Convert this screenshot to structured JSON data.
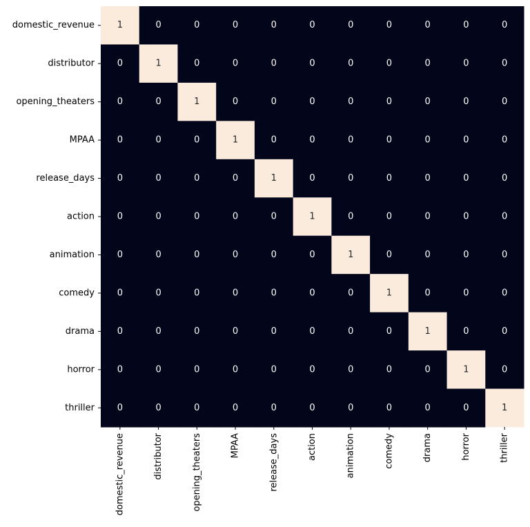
{
  "chart_data": {
    "type": "heatmap",
    "title": "",
    "xlabel": "",
    "ylabel": "",
    "x_categories": [
      "domestic_revenue",
      "distributor",
      "opening_theaters",
      "MPAA",
      "release_days",
      "action",
      "animation",
      "comedy",
      "drama",
      "horror",
      "thriller"
    ],
    "y_categories": [
      "domestic_revenue",
      "distributor",
      "opening_theaters",
      "MPAA",
      "release_days",
      "action",
      "animation",
      "comedy",
      "drama",
      "horror",
      "thriller"
    ],
    "values": [
      [
        1,
        0,
        0,
        0,
        0,
        0,
        0,
        0,
        0,
        0,
        0
      ],
      [
        0,
        1,
        0,
        0,
        0,
        0,
        0,
        0,
        0,
        0,
        0
      ],
      [
        0,
        0,
        1,
        0,
        0,
        0,
        0,
        0,
        0,
        0,
        0
      ],
      [
        0,
        0,
        0,
        1,
        0,
        0,
        0,
        0,
        0,
        0,
        0
      ],
      [
        0,
        0,
        0,
        0,
        1,
        0,
        0,
        0,
        0,
        0,
        0
      ],
      [
        0,
        0,
        0,
        0,
        0,
        1,
        0,
        0,
        0,
        0,
        0
      ],
      [
        0,
        0,
        0,
        0,
        0,
        0,
        1,
        0,
        0,
        0,
        0
      ],
      [
        0,
        0,
        0,
        0,
        0,
        0,
        0,
        1,
        0,
        0,
        0
      ],
      [
        0,
        0,
        0,
        0,
        0,
        0,
        0,
        0,
        1,
        0,
        0
      ],
      [
        0,
        0,
        0,
        0,
        0,
        0,
        0,
        0,
        0,
        1,
        0
      ],
      [
        0,
        0,
        0,
        0,
        0,
        0,
        0,
        0,
        0,
        0,
        1
      ]
    ],
    "value_range": [
      0,
      1
    ],
    "annotated": true,
    "colorbar": false,
    "colors": {
      "low": "#03051a",
      "high": "#faebdd",
      "text_on_low": "#ffffff",
      "text_on_high": "#262626",
      "tick": "#000000"
    }
  }
}
